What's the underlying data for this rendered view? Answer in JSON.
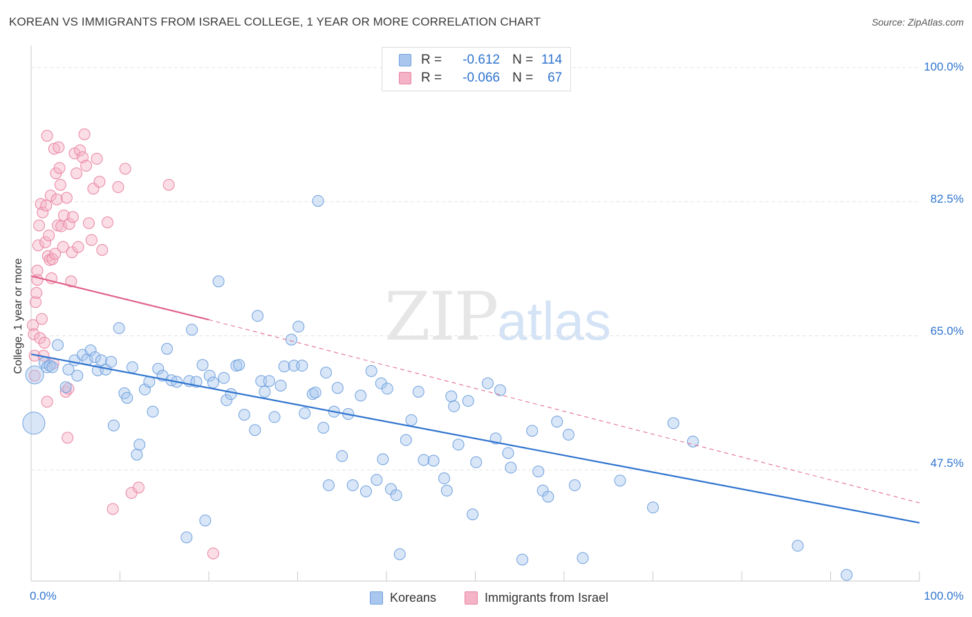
{
  "header": {
    "title": "KOREAN VS IMMIGRANTS FROM ISRAEL COLLEGE, 1 YEAR OR MORE CORRELATION CHART",
    "source": "Source: ZipAtlas.com"
  },
  "watermark": {
    "zip": "ZIP",
    "atlas": "atlas"
  },
  "legend": {
    "rows": [
      {
        "r_label": "R =",
        "r_value": "-0.612",
        "n_label": "N =",
        "n_value": "114"
      },
      {
        "r_label": "R =",
        "r_value": "-0.066",
        "n_label": "N =",
        "n_value": "67"
      }
    ]
  },
  "bottom_legend": {
    "koreans": "Koreans",
    "israel": "Immigrants from Israel"
  },
  "colors": {
    "blue_fill": "#a9c7ee",
    "blue_stroke": "#6fa0de",
    "blue_line": "#2f74cf",
    "pink_fill": "#f4b3c6",
    "pink_stroke": "#e983a2",
    "pink_line": "#e0618a",
    "grid": "#e3e3e3",
    "axis_text": "#2f74cf"
  },
  "chart_data": {
    "type": "scatter",
    "title": "KOREAN VS IMMIGRANTS FROM ISRAEL COLLEGE, 1 YEAR OR MORE CORRELATION CHART",
    "xlabel": "",
    "ylabel": "College, 1 year or more",
    "x_tick_labels": [
      "0.0%",
      "100.0%"
    ],
    "y_tick_labels": [
      "100.0%",
      "82.5%",
      "65.0%",
      "47.5%"
    ],
    "y_ticks": [
      100.0,
      82.5,
      65.0,
      47.5
    ],
    "xlim": [
      0,
      100
    ],
    "ylim": [
      33.0,
      102.5
    ],
    "grid": true,
    "legend_position": "top-center",
    "series": [
      {
        "name": "Koreans",
        "R": -0.612,
        "N": 114,
        "trend": {
          "x": [
            0,
            100
          ],
          "y": [
            62.6,
            40.6
          ]
        },
        "points": [
          [
            0.3,
            53.6
          ],
          [
            0.4,
            59.9
          ],
          [
            1.5,
            61.5
          ],
          [
            1.8,
            60.9
          ],
          [
            2.1,
            61.1
          ],
          [
            2.4,
            60.9
          ],
          [
            3.0,
            63.8
          ],
          [
            3.9,
            58.3
          ],
          [
            4.2,
            60.6
          ],
          [
            4.9,
            61.8
          ],
          [
            5.2,
            59.8
          ],
          [
            5.8,
            62.5
          ],
          [
            6.3,
            61.9
          ],
          [
            6.7,
            63.1
          ],
          [
            7.2,
            62.2
          ],
          [
            7.5,
            60.5
          ],
          [
            7.9,
            61.8
          ],
          [
            8.4,
            60.6
          ],
          [
            9.0,
            61.6
          ],
          [
            9.3,
            53.3
          ],
          [
            9.9,
            66.0
          ],
          [
            10.5,
            57.5
          ],
          [
            10.8,
            56.9
          ],
          [
            11.4,
            60.9
          ],
          [
            11.9,
            49.5
          ],
          [
            12.2,
            50.8
          ],
          [
            12.8,
            58.0
          ],
          [
            13.3,
            59.0
          ],
          [
            13.7,
            55.1
          ],
          [
            14.3,
            60.7
          ],
          [
            14.8,
            59.8
          ],
          [
            15.3,
            63.3
          ],
          [
            15.8,
            59.2
          ],
          [
            16.4,
            59.0
          ],
          [
            17.5,
            38.7
          ],
          [
            17.8,
            59.1
          ],
          [
            18.1,
            65.8
          ],
          [
            18.6,
            59.0
          ],
          [
            19.3,
            61.2
          ],
          [
            19.6,
            40.9
          ],
          [
            20.1,
            59.8
          ],
          [
            20.5,
            58.9
          ],
          [
            21.1,
            72.1
          ],
          [
            21.7,
            59.5
          ],
          [
            22.0,
            56.6
          ],
          [
            22.5,
            57.4
          ],
          [
            23.1,
            61.1
          ],
          [
            23.4,
            61.2
          ],
          [
            24.0,
            54.7
          ],
          [
            25.2,
            52.7
          ],
          [
            25.5,
            67.6
          ],
          [
            25.9,
            59.1
          ],
          [
            26.3,
            57.7
          ],
          [
            26.8,
            59.1
          ],
          [
            27.4,
            54.4
          ],
          [
            28.1,
            58.5
          ],
          [
            28.5,
            61.0
          ],
          [
            29.3,
            64.5
          ],
          [
            29.6,
            61.1
          ],
          [
            30.1,
            66.2
          ],
          [
            30.5,
            61.1
          ],
          [
            30.8,
            54.9
          ],
          [
            31.7,
            57.4
          ],
          [
            32.0,
            57.6
          ],
          [
            32.3,
            82.6
          ],
          [
            32.9,
            53.0
          ],
          [
            33.2,
            60.2
          ],
          [
            33.5,
            45.5
          ],
          [
            34.1,
            55.1
          ],
          [
            34.5,
            58.2
          ],
          [
            35.0,
            49.3
          ],
          [
            35.7,
            54.8
          ],
          [
            36.2,
            45.5
          ],
          [
            37.1,
            57.2
          ],
          [
            37.7,
            44.7
          ],
          [
            38.3,
            60.4
          ],
          [
            38.9,
            46.2
          ],
          [
            39.4,
            58.8
          ],
          [
            39.6,
            48.9
          ],
          [
            40.1,
            58.1
          ],
          [
            40.5,
            45.0
          ],
          [
            41.1,
            44.2
          ],
          [
            41.5,
            36.5
          ],
          [
            42.2,
            51.4
          ],
          [
            42.8,
            54.0
          ],
          [
            43.6,
            57.7
          ],
          [
            44.2,
            48.8
          ],
          [
            45.3,
            48.7
          ],
          [
            46.5,
            46.4
          ],
          [
            46.8,
            44.8
          ],
          [
            47.3,
            57.1
          ],
          [
            47.6,
            55.8
          ],
          [
            48.1,
            50.8
          ],
          [
            49.2,
            56.5
          ],
          [
            49.7,
            41.7
          ],
          [
            50.1,
            48.5
          ],
          [
            51.4,
            58.8
          ],
          [
            52.3,
            51.6
          ],
          [
            52.8,
            57.9
          ],
          [
            53.7,
            49.7
          ],
          [
            54.0,
            47.8
          ],
          [
            55.3,
            35.8
          ],
          [
            56.4,
            52.6
          ],
          [
            57.1,
            47.3
          ],
          [
            57.6,
            44.8
          ],
          [
            58.2,
            44.0
          ],
          [
            59.2,
            53.8
          ],
          [
            60.5,
            52.1
          ],
          [
            61.2,
            45.5
          ],
          [
            62.1,
            36.0
          ],
          [
            66.3,
            46.1
          ],
          [
            70.0,
            42.6
          ],
          [
            72.3,
            53.6
          ],
          [
            74.5,
            51.2
          ],
          [
            86.3,
            37.6
          ],
          [
            91.8,
            33.8
          ]
        ]
      },
      {
        "name": "Immigrants from Israel",
        "R": -0.066,
        "N": 67,
        "trend": {
          "x": [
            0,
            20
          ],
          "y": [
            72.8,
            67.1
          ]
        },
        "trend_extended": {
          "x": [
            20,
            100
          ],
          "y": [
            67.1,
            43.2
          ]
        },
        "points": [
          [
            0.2,
            66.4
          ],
          [
            0.3,
            65.2
          ],
          [
            0.4,
            62.4
          ],
          [
            0.4,
            59.8
          ],
          [
            0.5,
            69.4
          ],
          [
            0.6,
            70.6
          ],
          [
            0.7,
            72.3
          ],
          [
            0.7,
            73.5
          ],
          [
            0.8,
            76.8
          ],
          [
            0.9,
            79.4
          ],
          [
            1.0,
            64.7
          ],
          [
            1.1,
            82.2
          ],
          [
            1.2,
            67.2
          ],
          [
            1.3,
            81.1
          ],
          [
            1.4,
            62.4
          ],
          [
            1.5,
            64.1
          ],
          [
            1.6,
            77.2
          ],
          [
            1.7,
            82.0
          ],
          [
            1.8,
            91.1
          ],
          [
            1.8,
            56.4
          ],
          [
            1.9,
            75.4
          ],
          [
            2.0,
            78.1
          ],
          [
            2.1,
            74.9
          ],
          [
            2.2,
            83.3
          ],
          [
            2.3,
            72.5
          ],
          [
            2.4,
            75.0
          ],
          [
            2.5,
            61.4
          ],
          [
            2.6,
            89.4
          ],
          [
            2.7,
            75.7
          ],
          [
            2.8,
            86.2
          ],
          [
            2.9,
            82.8
          ],
          [
            3.0,
            79.4
          ],
          [
            3.1,
            89.6
          ],
          [
            3.2,
            86.9
          ],
          [
            3.3,
            84.7
          ],
          [
            3.4,
            79.3
          ],
          [
            3.6,
            76.6
          ],
          [
            3.7,
            80.7
          ],
          [
            3.9,
            57.7
          ],
          [
            4.0,
            83.0
          ],
          [
            4.1,
            51.7
          ],
          [
            4.2,
            58.1
          ],
          [
            4.3,
            79.6
          ],
          [
            4.5,
            72.1
          ],
          [
            4.6,
            75.9
          ],
          [
            4.7,
            80.5
          ],
          [
            4.9,
            88.8
          ],
          [
            5.1,
            86.2
          ],
          [
            5.3,
            76.6
          ],
          [
            5.5,
            89.2
          ],
          [
            5.8,
            88.3
          ],
          [
            6.0,
            91.3
          ],
          [
            6.2,
            87.2
          ],
          [
            6.5,
            79.7
          ],
          [
            6.8,
            77.5
          ],
          [
            7.0,
            84.2
          ],
          [
            7.4,
            88.1
          ],
          [
            7.7,
            85.1
          ],
          [
            8.0,
            76.2
          ],
          [
            8.6,
            79.8
          ],
          [
            9.2,
            42.4
          ],
          [
            9.8,
            84.4
          ],
          [
            10.6,
            86.8
          ],
          [
            11.3,
            44.5
          ],
          [
            12.1,
            45.2
          ],
          [
            15.5,
            84.7
          ],
          [
            20.5,
            36.6
          ]
        ]
      }
    ]
  }
}
